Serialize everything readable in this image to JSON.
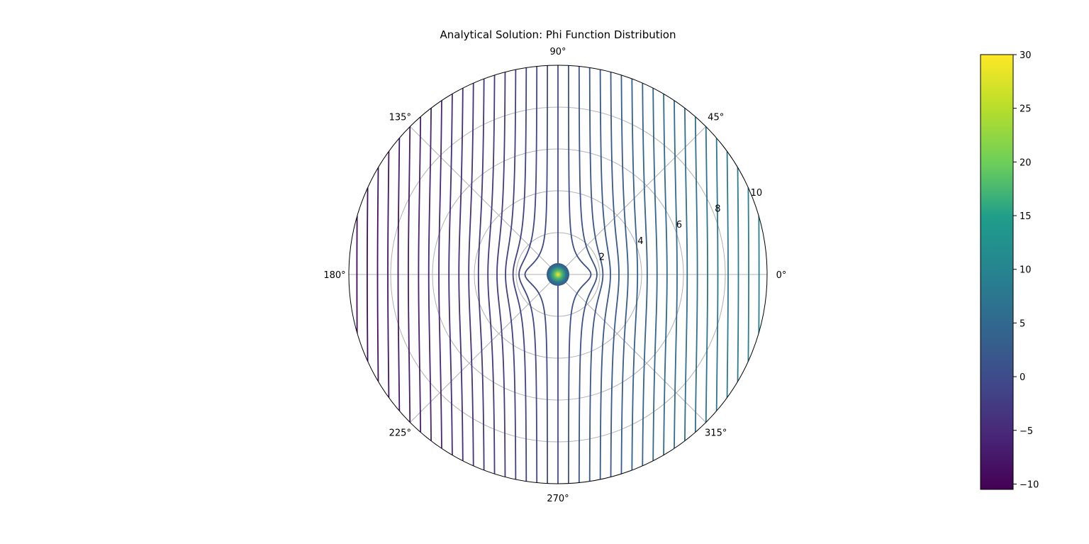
{
  "chart_data": {
    "type": "contour",
    "projection": "polar",
    "title": "Analytical Solution: Phi Function Distribution",
    "theta_ticks": [
      "0°",
      "45°",
      "90°",
      "135°",
      "180°",
      "225°",
      "270°",
      "315°"
    ],
    "theta_tick_values_deg": [
      0,
      45,
      90,
      135,
      180,
      225,
      270,
      315
    ],
    "r_ticks": [
      "2",
      "4",
      "6",
      "8",
      "10"
    ],
    "r_tick_values": [
      2,
      4,
      6,
      8,
      10
    ],
    "r_max": 10,
    "r_label_angle_deg": 22.5,
    "grid": true,
    "colormap": "viridis",
    "colorbar": {
      "range": [
        -10.5,
        30
      ],
      "ticks": [
        "−10",
        "−5",
        "0",
        "5",
        "10",
        "15",
        "20",
        "25",
        "30"
      ],
      "tick_values": [
        -10,
        -5,
        0,
        5,
        10,
        15,
        20,
        25,
        30
      ],
      "position": "right"
    },
    "field": {
      "description": "uniform flow plus source at origin; vertical contour lines",
      "uniform_gradient_per_unit_x": 1.0,
      "line_values": [
        -10,
        -9.5,
        -9,
        -8.5,
        -8,
        -7.5,
        -7,
        -6.5,
        -6,
        -5.5,
        -5,
        -4.5,
        -4,
        -3.5,
        -3,
        -2.5,
        -2,
        -1.5,
        -1,
        -0.5,
        0,
        0.5,
        1,
        1.5,
        2,
        2.5,
        3,
        3.5,
        4,
        4.5,
        5,
        5.5,
        6,
        6.5,
        7,
        7.5,
        8,
        8.5,
        9,
        9.5,
        10
      ],
      "core_max": 30
    }
  },
  "colors": {
    "grid": "#b0b0b0",
    "spine": "#000000",
    "viridis": [
      "#440154",
      "#482777",
      "#3f4a8a",
      "#31678e",
      "#26838f",
      "#1f9d8a",
      "#6cce5a",
      "#b6de2b",
      "#fee825"
    ]
  }
}
